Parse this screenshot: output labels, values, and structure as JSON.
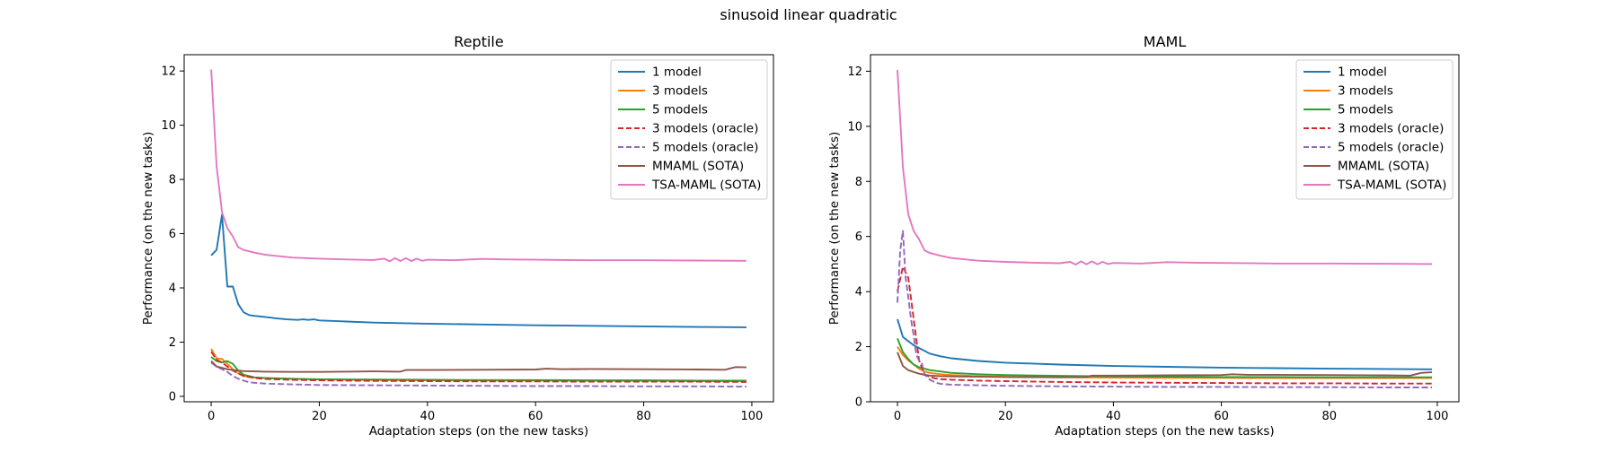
{
  "figure": {
    "suptitle": "sinusoid linear quadratic"
  },
  "chart_data": [
    {
      "type": "line",
      "title": "Reptile",
      "xlabel": "Adaptation steps (on the new tasks)",
      "ylabel": "Performance (on the new tasks)",
      "xlim": [
        -5,
        104
      ],
      "ylim": [
        -0.2,
        12.6
      ],
      "xticks": [
        0,
        20,
        40,
        60,
        80,
        100
      ],
      "yticks": [
        0,
        2,
        4,
        6,
        8,
        10,
        12
      ],
      "grid": false,
      "legend_position": "top-right",
      "series": [
        {
          "name": "1 model",
          "color": "#1f77b4",
          "dash": "solid",
          "x": [
            0,
            1,
            2,
            3,
            4,
            5,
            6,
            7,
            8,
            10,
            12,
            14,
            16,
            17,
            18,
            19,
            20,
            25,
            30,
            40,
            50,
            60,
            70,
            80,
            90,
            99
          ],
          "y": [
            5.2,
            5.4,
            6.7,
            4.05,
            4.05,
            3.4,
            3.1,
            3.0,
            2.97,
            2.93,
            2.88,
            2.84,
            2.82,
            2.84,
            2.82,
            2.84,
            2.8,
            2.76,
            2.72,
            2.68,
            2.65,
            2.62,
            2.6,
            2.58,
            2.56,
            2.55
          ]
        },
        {
          "name": "3 models",
          "color": "#ff7f0e",
          "dash": "solid",
          "x": [
            0,
            1,
            2,
            3,
            4,
            5,
            6,
            8,
            10,
            15,
            20,
            30,
            40,
            50,
            60,
            70,
            80,
            90,
            99
          ],
          "y": [
            1.75,
            1.4,
            1.38,
            1.2,
            1.0,
            0.85,
            0.75,
            0.7,
            0.67,
            0.64,
            0.62,
            0.6,
            0.59,
            0.58,
            0.58,
            0.57,
            0.57,
            0.56,
            0.56
          ]
        },
        {
          "name": "5 models",
          "color": "#2ca02c",
          "dash": "solid",
          "x": [
            0,
            1,
            2,
            3,
            4,
            5,
            6,
            7,
            8,
            10,
            15,
            20,
            30,
            40,
            50,
            60,
            70,
            80,
            90,
            99
          ],
          "y": [
            1.45,
            1.3,
            1.25,
            1.3,
            1.2,
            0.95,
            0.8,
            0.75,
            0.7,
            0.68,
            0.65,
            0.63,
            0.62,
            0.61,
            0.6,
            0.6,
            0.59,
            0.59,
            0.58,
            0.58
          ]
        },
        {
          "name": "3 models (oracle)",
          "color": "#d62728",
          "dash": "dashed",
          "x": [
            0,
            1,
            2,
            3,
            4,
            5,
            6,
            8,
            10,
            15,
            20,
            30,
            40,
            50,
            60,
            70,
            80,
            90,
            99
          ],
          "y": [
            1.65,
            1.35,
            1.25,
            1.1,
            0.95,
            0.85,
            0.75,
            0.68,
            0.64,
            0.61,
            0.59,
            0.57,
            0.56,
            0.55,
            0.55,
            0.54,
            0.54,
            0.54,
            0.53
          ]
        },
        {
          "name": "5 models (oracle)",
          "color": "#9467bd",
          "dash": "dashed",
          "x": [
            0,
            1,
            2,
            3,
            4,
            5,
            6,
            7,
            8,
            10,
            15,
            20,
            30,
            40,
            50,
            60,
            70,
            80,
            90,
            99
          ],
          "y": [
            1.25,
            1.1,
            1.0,
            0.9,
            0.75,
            0.65,
            0.58,
            0.52,
            0.5,
            0.47,
            0.44,
            0.42,
            0.41,
            0.4,
            0.39,
            0.38,
            0.38,
            0.37,
            0.37,
            0.36
          ]
        },
        {
          "name": "MMAML (SOTA)",
          "color": "#8c564b",
          "dash": "solid",
          "x": [
            0,
            1,
            2,
            3,
            4,
            5,
            6,
            8,
            10,
            15,
            20,
            25,
            30,
            35,
            36,
            40,
            50,
            60,
            62,
            65,
            70,
            80,
            90,
            95,
            97,
            99
          ],
          "y": [
            1.3,
            1.1,
            1.05,
            1.0,
            0.97,
            0.95,
            0.93,
            0.92,
            0.91,
            0.9,
            0.9,
            0.91,
            0.92,
            0.91,
            0.97,
            0.97,
            0.98,
            0.99,
            1.02,
            1.0,
            1.01,
            1.0,
            0.99,
            0.98,
            1.08,
            1.07
          ]
        },
        {
          "name": "TSA-MAML (SOTA)",
          "color": "#e377c2",
          "dash": "solid",
          "x": [
            0,
            1,
            2,
            3,
            4,
            5,
            6,
            8,
            10,
            15,
            20,
            25,
            30,
            32,
            33,
            34,
            35,
            36,
            37,
            38,
            39,
            40,
            45,
            50,
            55,
            60,
            70,
            80,
            90,
            99
          ],
          "y": [
            12.05,
            8.5,
            6.8,
            6.2,
            5.9,
            5.5,
            5.4,
            5.3,
            5.22,
            5.12,
            5.08,
            5.05,
            5.03,
            5.08,
            4.98,
            5.1,
            4.99,
            5.1,
            4.99,
            5.08,
            5.0,
            5.04,
            5.02,
            5.07,
            5.05,
            5.04,
            5.02,
            5.02,
            5.01,
            5.0
          ]
        }
      ]
    },
    {
      "type": "line",
      "title": "MAML",
      "xlabel": "Adaptation steps (on the new tasks)",
      "ylabel": "Performance (on the new tasks)",
      "xlim": [
        -5,
        104
      ],
      "ylim": [
        0.0,
        12.6
      ],
      "xticks": [
        0,
        20,
        40,
        60,
        80,
        100
      ],
      "yticks": [
        0,
        2,
        4,
        6,
        8,
        10,
        12
      ],
      "grid": false,
      "legend_position": "top-right",
      "series": [
        {
          "name": "1 model",
          "color": "#1f77b4",
          "dash": "solid",
          "x": [
            0,
            1,
            2,
            3,
            4,
            5,
            6,
            8,
            10,
            15,
            20,
            30,
            40,
            50,
            60,
            70,
            80,
            90,
            99
          ],
          "y": [
            3.0,
            2.35,
            2.2,
            2.05,
            1.95,
            1.85,
            1.75,
            1.65,
            1.58,
            1.48,
            1.42,
            1.35,
            1.3,
            1.27,
            1.24,
            1.22,
            1.2,
            1.19,
            1.18
          ]
        },
        {
          "name": "3 models",
          "color": "#ff7f0e",
          "dash": "solid",
          "x": [
            0,
            1,
            2,
            3,
            4,
            5,
            6,
            8,
            10,
            15,
            20,
            30,
            40,
            50,
            60,
            70,
            80,
            90,
            99
          ],
          "y": [
            2.0,
            1.7,
            1.5,
            1.35,
            1.2,
            1.1,
            1.05,
            1.0,
            0.97,
            0.93,
            0.91,
            0.89,
            0.88,
            0.87,
            0.87,
            0.86,
            0.86,
            0.86,
            0.86
          ]
        },
        {
          "name": "5 models",
          "color": "#2ca02c",
          "dash": "solid",
          "x": [
            0,
            1,
            2,
            3,
            4,
            5,
            6,
            8,
            10,
            15,
            20,
            30,
            40,
            50,
            60,
            70,
            80,
            90,
            99
          ],
          "y": [
            2.3,
            1.8,
            1.55,
            1.35,
            1.25,
            1.2,
            1.15,
            1.1,
            1.05,
            1.0,
            0.97,
            0.94,
            0.92,
            0.91,
            0.9,
            0.9,
            0.89,
            0.89,
            0.89
          ]
        },
        {
          "name": "3 models (oracle)",
          "color": "#d62728",
          "dash": "dashed",
          "x": [
            0,
            1,
            2,
            3,
            4,
            5,
            6,
            7,
            8,
            10,
            15,
            20,
            30,
            40,
            50,
            60,
            70,
            80,
            90,
            99
          ],
          "y": [
            4.0,
            4.9,
            4.5,
            3.0,
            1.5,
            1.0,
            0.9,
            0.85,
            0.82,
            0.8,
            0.77,
            0.75,
            0.72,
            0.7,
            0.69,
            0.68,
            0.67,
            0.67,
            0.66,
            0.66
          ]
        },
        {
          "name": "5 models (oracle)",
          "color": "#9467bd",
          "dash": "dashed",
          "x": [
            0,
            0.5,
            1,
            1.5,
            2,
            2.5,
            3,
            3.5,
            4,
            4.5,
            5,
            6,
            7,
            8,
            10,
            15,
            20,
            30,
            40,
            50,
            60,
            70,
            80,
            90,
            99
          ],
          "y": [
            3.6,
            5.5,
            6.2,
            4.5,
            3.8,
            3.0,
            2.4,
            1.7,
            1.5,
            1.4,
            1.0,
            0.8,
            0.7,
            0.65,
            0.62,
            0.6,
            0.58,
            0.56,
            0.55,
            0.54,
            0.54,
            0.53,
            0.53,
            0.52,
            0.52
          ]
        },
        {
          "name": "MMAML (SOTA)",
          "color": "#8c564b",
          "dash": "solid",
          "x": [
            0,
            1,
            2,
            3,
            4,
            5,
            6,
            8,
            10,
            15,
            20,
            30,
            35,
            36,
            40,
            50,
            60,
            62,
            65,
            70,
            80,
            90,
            95,
            97,
            99
          ],
          "y": [
            1.8,
            1.3,
            1.15,
            1.08,
            1.02,
            0.98,
            0.95,
            0.93,
            0.92,
            0.91,
            0.9,
            0.89,
            0.9,
            0.95,
            0.95,
            0.96,
            0.97,
            1.0,
            0.98,
            0.98,
            0.97,
            0.96,
            0.95,
            1.05,
            1.07
          ]
        },
        {
          "name": "TSA-MAML (SOTA)",
          "color": "#e377c2",
          "dash": "solid",
          "x": [
            0,
            1,
            2,
            3,
            4,
            5,
            6,
            8,
            10,
            15,
            20,
            25,
            30,
            32,
            33,
            34,
            35,
            36,
            37,
            38,
            39,
            40,
            45,
            50,
            55,
            60,
            70,
            80,
            90,
            99
          ],
          "y": [
            12.05,
            8.5,
            6.8,
            6.2,
            5.9,
            5.5,
            5.4,
            5.3,
            5.22,
            5.12,
            5.08,
            5.05,
            5.03,
            5.08,
            4.98,
            5.1,
            4.99,
            5.1,
            4.99,
            5.08,
            5.0,
            5.04,
            5.02,
            5.07,
            5.05,
            5.04,
            5.02,
            5.02,
            5.01,
            5.0
          ]
        }
      ]
    }
  ]
}
